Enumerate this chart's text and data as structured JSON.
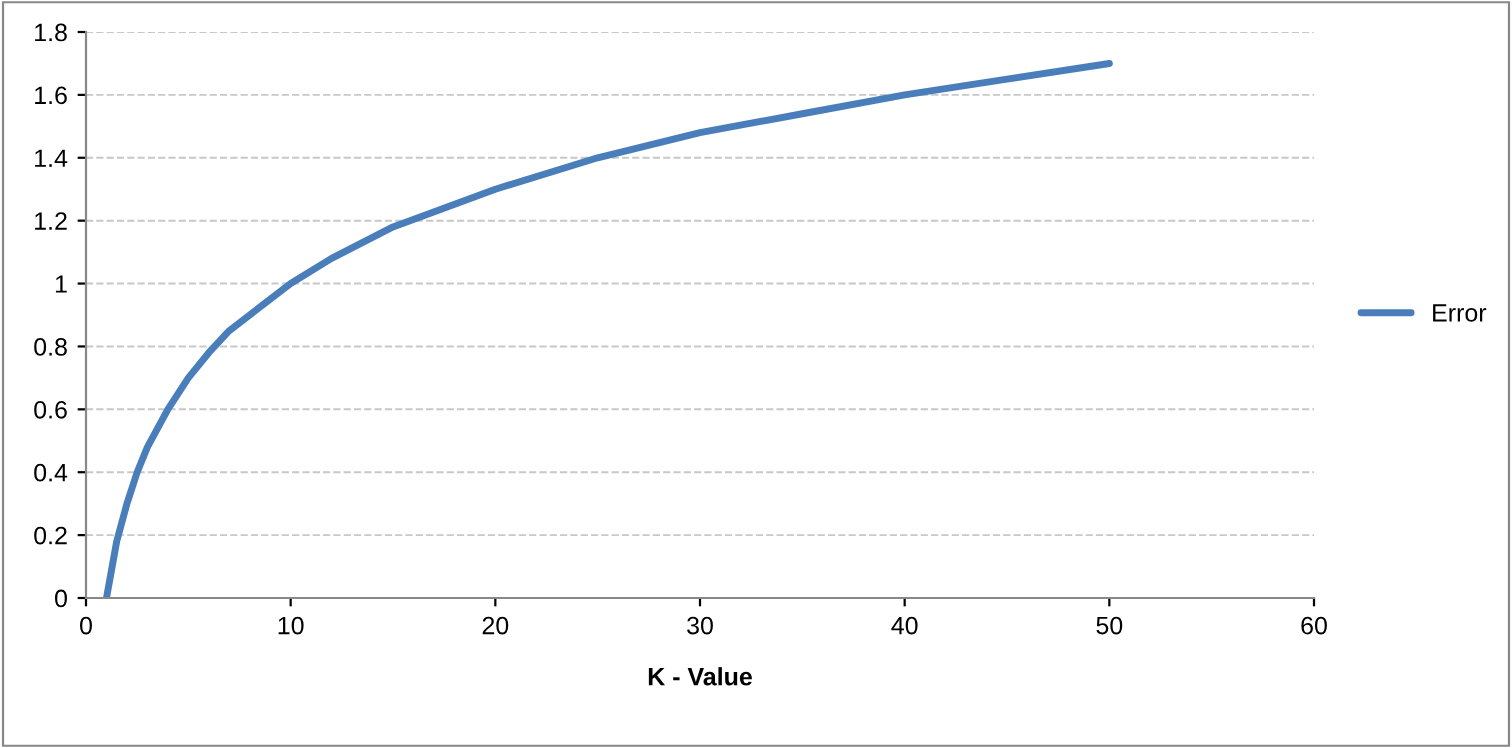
{
  "chart_data": {
    "type": "line",
    "xlabel": "K - Value",
    "x": [
      1,
      1.5,
      2,
      2.5,
      3,
      4,
      5,
      6,
      7,
      8,
      10,
      12,
      15,
      20,
      25,
      30,
      35,
      40,
      45,
      50
    ],
    "series": [
      {
        "name": "Error",
        "color": "#4a7ebb",
        "values": [
          0,
          0.18,
          0.3,
          0.4,
          0.48,
          0.6,
          0.7,
          0.78,
          0.85,
          0.9,
          1.0,
          1.08,
          1.18,
          1.3,
          1.4,
          1.48,
          1.54,
          1.6,
          1.65,
          1.7
        ]
      }
    ],
    "xlim": [
      0,
      60
    ],
    "xticks": [
      0,
      10,
      20,
      30,
      40,
      50,
      60
    ],
    "ylim": [
      0,
      1.8
    ],
    "yticks": [
      0,
      0.2,
      0.4,
      0.6,
      0.8,
      1,
      1.2,
      1.4,
      1.6,
      1.8
    ],
    "grid": "y",
    "legend": "right",
    "marker": "none",
    "line_style": "solid"
  }
}
